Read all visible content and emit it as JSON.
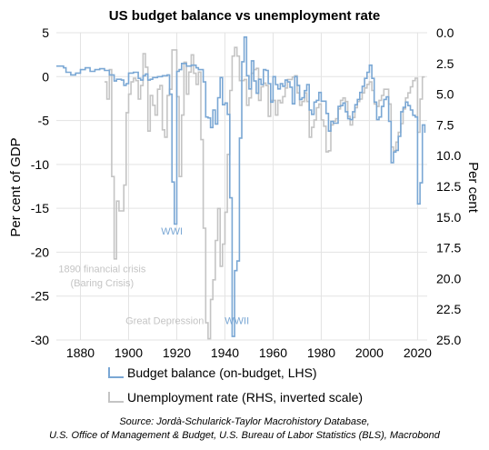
{
  "chart_data": {
    "type": "line",
    "title": "US budget balance vs unemployment rate",
    "ylabel_left": "Per cent of GDP",
    "ylabel_right": "Per cent",
    "xlim": [
      1870,
      2024
    ],
    "ylim_left": [
      -30,
      5
    ],
    "ylim_right": [
      25,
      0
    ],
    "right_axis_inverted": true,
    "grid": true,
    "x_ticks": [
      1880,
      1900,
      1920,
      1940,
      1960,
      1980,
      2000,
      2020
    ],
    "y_ticks_left": [
      5,
      0,
      -5,
      -10,
      -15,
      -20,
      -25,
      -30
    ],
    "y_ticks_right": [
      "0.0",
      "2.5",
      "5.0",
      "7.5",
      "10.0",
      "12.5",
      "15.0",
      "17.5",
      "20.0",
      "22.5",
      "25.0"
    ],
    "series": [
      {
        "name": "Budget balance (on-budget, LHS)",
        "axis": "left",
        "color": "#7aa7d4",
        "x": [
          1870,
          1873,
          1874,
          1876,
          1878,
          1880,
          1882,
          1884,
          1886,
          1888,
          1890,
          1892,
          1894,
          1895,
          1897,
          1898,
          1899,
          1900,
          1902,
          1904,
          1905,
          1906,
          1907,
          1908,
          1909,
          1910,
          1912,
          1914,
          1916,
          1917,
          1918,
          1919,
          1920,
          1921,
          1922,
          1924,
          1926,
          1928,
          1929,
          1930,
          1931,
          1932,
          1933,
          1934,
          1935,
          1936,
          1937,
          1938,
          1939,
          1940,
          1941,
          1942,
          1943,
          1944,
          1945,
          1946,
          1947,
          1948,
          1949,
          1950,
          1951,
          1952,
          1953,
          1954,
          1955,
          1956,
          1957,
          1958,
          1959,
          1960,
          1961,
          1962,
          1963,
          1964,
          1965,
          1966,
          1967,
          1968,
          1969,
          1970,
          1971,
          1972,
          1973,
          1974,
          1975,
          1976,
          1977,
          1978,
          1979,
          1980,
          1981,
          1982,
          1983,
          1984,
          1985,
          1986,
          1987,
          1988,
          1989,
          1990,
          1991,
          1992,
          1993,
          1994,
          1995,
          1996,
          1997,
          1998,
          1999,
          2000,
          2001,
          2002,
          2003,
          2004,
          2005,
          2006,
          2007,
          2008,
          2009,
          2010,
          2011,
          2012,
          2013,
          2014,
          2015,
          2016,
          2017,
          2018,
          2019,
          2020,
          2021,
          2022,
          2023
        ],
        "values": [
          1.2,
          1.0,
          0.5,
          0.2,
          0.4,
          0.8,
          1.0,
          0.6,
          0.8,
          0.9,
          0.7,
          0.2,
          -0.5,
          -0.3,
          -0.4,
          -1.0,
          -0.8,
          0.4,
          0.5,
          -0.2,
          -0.4,
          0.1,
          0.3,
          -0.4,
          -0.3,
          -0.1,
          0.0,
          0.1,
          0.2,
          -2.0,
          -12.0,
          -16.8,
          0.6,
          0.8,
          1.5,
          1.2,
          1.3,
          1.0,
          0.8,
          0.8,
          -0.6,
          -4.6,
          -4.7,
          -5.8,
          -3.8,
          -5.4,
          -2.4,
          -0.1,
          -3.2,
          -3.0,
          -4.3,
          -13.8,
          -29.6,
          -22.1,
          -21.0,
          -7.0,
          1.7,
          4.5,
          0.1,
          -1.4,
          1.8,
          -0.5,
          -1.9,
          -0.3,
          -0.9,
          0.8,
          0.7,
          -0.8,
          -2.9,
          0.0,
          -0.9,
          -1.4,
          -0.8,
          -1.1,
          -0.4,
          -0.6,
          -1.2,
          -3.1,
          0.0,
          -1.0,
          -2.6,
          -2.4,
          -1.6,
          -0.9,
          -3.8,
          -4.3,
          -2.9,
          -2.7,
          -1.8,
          -2.8,
          -2.8,
          -4.2,
          -6.2,
          -5.1,
          -5.3,
          -5.3,
          -3.4,
          -3.3,
          -3.0,
          -4.0,
          -4.8,
          -4.9,
          -4.0,
          -3.2,
          -2.6,
          -1.8,
          -1.1,
          -0.2,
          0.5,
          1.3,
          -0.2,
          -2.9,
          -4.9,
          -4.6,
          -3.4,
          -2.6,
          -2.3,
          -5.1,
          -9.8,
          -8.6,
          -8.4,
          -6.8,
          -4.0,
          -3.5,
          -2.9,
          -3.3,
          -3.8,
          -4.4,
          -4.6,
          -14.5,
          -12.1,
          -5.5,
          -6.4
        ]
      },
      {
        "name": "Unemployment rate (RHS, inverted scale)",
        "axis": "right",
        "color": "#c4c4c4",
        "x": [
          1890,
          1891,
          1892,
          1893,
          1894,
          1895,
          1896,
          1897,
          1898,
          1899,
          1900,
          1901,
          1902,
          1903,
          1904,
          1905,
          1906,
          1907,
          1908,
          1909,
          1910,
          1911,
          1912,
          1913,
          1914,
          1915,
          1916,
          1917,
          1918,
          1919,
          1920,
          1921,
          1922,
          1923,
          1924,
          1925,
          1926,
          1927,
          1928,
          1929,
          1930,
          1931,
          1932,
          1933,
          1934,
          1935,
          1936,
          1937,
          1938,
          1939,
          1940,
          1941,
          1942,
          1943,
          1944,
          1945,
          1946,
          1947,
          1948,
          1949,
          1950,
          1951,
          1952,
          1953,
          1954,
          1955,
          1956,
          1957,
          1958,
          1959,
          1960,
          1961,
          1962,
          1963,
          1964,
          1965,
          1966,
          1967,
          1968,
          1969,
          1970,
          1971,
          1972,
          1973,
          1974,
          1975,
          1976,
          1977,
          1978,
          1979,
          1980,
          1981,
          1982,
          1983,
          1984,
          1985,
          1986,
          1987,
          1988,
          1989,
          1990,
          1991,
          1992,
          1993,
          1994,
          1995,
          1996,
          1997,
          1998,
          1999,
          2000,
          2001,
          2002,
          2003,
          2004,
          2005,
          2006,
          2007,
          2008,
          2009,
          2010,
          2011,
          2012,
          2013,
          2014,
          2015,
          2016,
          2017,
          2018,
          2019,
          2020,
          2021,
          2022,
          2023
        ],
        "values": [
          4.0,
          5.4,
          3.0,
          11.7,
          18.4,
          13.7,
          14.5,
          14.5,
          12.4,
          6.5,
          5.0,
          4.0,
          3.7,
          3.9,
          5.4,
          4.3,
          1.7,
          2.8,
          8.0,
          5.1,
          5.9,
          6.7,
          4.6,
          4.3,
          7.9,
          8.5,
          5.1,
          4.6,
          1.4,
          1.4,
          5.2,
          11.7,
          6.7,
          2.4,
          5.0,
          3.2,
          1.8,
          3.3,
          4.2,
          3.2,
          8.7,
          15.9,
          23.6,
          24.9,
          21.7,
          20.1,
          16.9,
          14.3,
          19.0,
          17.2,
          14.6,
          9.9,
          4.7,
          1.9,
          1.2,
          1.9,
          3.9,
          3.9,
          3.8,
          5.9,
          5.3,
          3.3,
          3.0,
          2.9,
          5.5,
          4.4,
          4.1,
          4.3,
          6.8,
          5.5,
          5.5,
          6.7,
          5.5,
          5.7,
          5.2,
          4.5,
          3.8,
          3.8,
          3.6,
          3.5,
          4.9,
          5.9,
          5.6,
          4.9,
          5.6,
          8.5,
          7.7,
          7.1,
          6.1,
          5.8,
          7.1,
          7.6,
          9.7,
          9.6,
          7.5,
          7.2,
          7.0,
          6.2,
          5.5,
          5.3,
          5.6,
          6.8,
          7.5,
          6.9,
          6.1,
          5.6,
          5.4,
          4.9,
          4.5,
          4.2,
          4.0,
          4.7,
          5.8,
          6.0,
          5.5,
          5.1,
          4.6,
          4.6,
          5.8,
          9.3,
          9.6,
          8.9,
          8.1,
          7.4,
          6.2,
          5.3,
          4.9,
          4.4,
          3.9,
          3.7,
          8.1,
          5.4,
          3.6,
          3.6
        ]
      }
    ],
    "annotations": [
      {
        "text": "WWI",
        "color": "#7aa7d4",
        "x": 1918,
        "y_left": -18
      },
      {
        "text": "WWII",
        "color": "#7aa7d4",
        "x": 1945,
        "y_left": -28.2
      },
      {
        "text": "1890 financial crisis",
        "color": "#c4c4c4",
        "x": 1889,
        "y_left": -22.3
      },
      {
        "text": "(Baring Crisis)",
        "color": "#c4c4c4",
        "x": 1889,
        "y_left": -23.9
      },
      {
        "text": "Great Depression",
        "color": "#c4c4c4",
        "x": 1915,
        "y_left": -28.2
      }
    ],
    "legend": [
      {
        "label": "Budget balance (on-budget, LHS)",
        "color": "#7aa7d4"
      },
      {
        "label": "Unemployment rate (RHS, inverted scale)",
        "color": "#c4c4c4"
      }
    ],
    "legend_placement": "bottom-left",
    "source_lines": [
      "Source: Jordà-Schularick-Taylor Macrohistory Database,",
      "U.S. Office of Management & Budget, U.S. Bureau of Labor Statistics (BLS), Macrobond"
    ]
  }
}
